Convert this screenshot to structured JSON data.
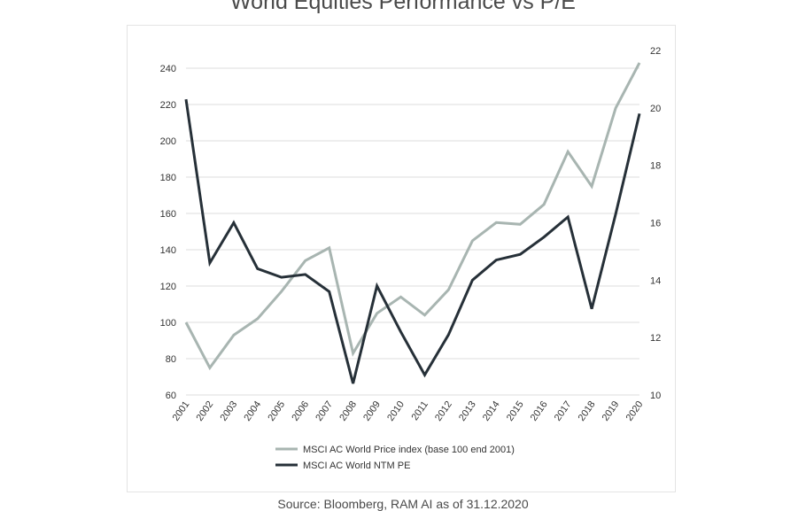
{
  "title": "World Equities Performance vs P/E",
  "source": "Source: Bloomberg, RAM AI as of 31.12.2020",
  "chart_data": {
    "type": "line",
    "x": [
      "2001",
      "2002",
      "2003",
      "2004",
      "2005",
      "2006",
      "2007",
      "2008",
      "2009",
      "2010",
      "2011",
      "2012",
      "2013",
      "2014",
      "2015",
      "2016",
      "2017",
      "2018",
      "2019",
      "2020"
    ],
    "series": [
      {
        "name": "MSCI AC World Price index (base 100 end 2001)",
        "axis": "left",
        "color": "#a8b5b1",
        "values": [
          100,
          75,
          93,
          102,
          117,
          134,
          141,
          83,
          105,
          114,
          104,
          118,
          145,
          155,
          154,
          165,
          194,
          175,
          218,
          243
        ]
      },
      {
        "name": "MSCI AC World NTM PE",
        "axis": "right",
        "color": "#263038",
        "values": [
          20.3,
          14.6,
          16.0,
          14.4,
          14.1,
          14.2,
          13.6,
          10.4,
          13.8,
          12.2,
          10.7,
          12.1,
          14.0,
          14.7,
          14.9,
          15.5,
          16.2,
          13.0,
          16.3,
          19.8
        ]
      }
    ],
    "y_left": {
      "ticks": [
        "60",
        "80",
        "100",
        "120",
        "140",
        "160",
        "180",
        "200",
        "220",
        "240"
      ],
      "range": [
        60,
        240
      ]
    },
    "y_right": {
      "ticks": [
        "10",
        "12",
        "14",
        "16",
        "18",
        "20",
        "22"
      ],
      "range": [
        10,
        22
      ]
    },
    "grid": true,
    "legend_position": "bottom"
  }
}
